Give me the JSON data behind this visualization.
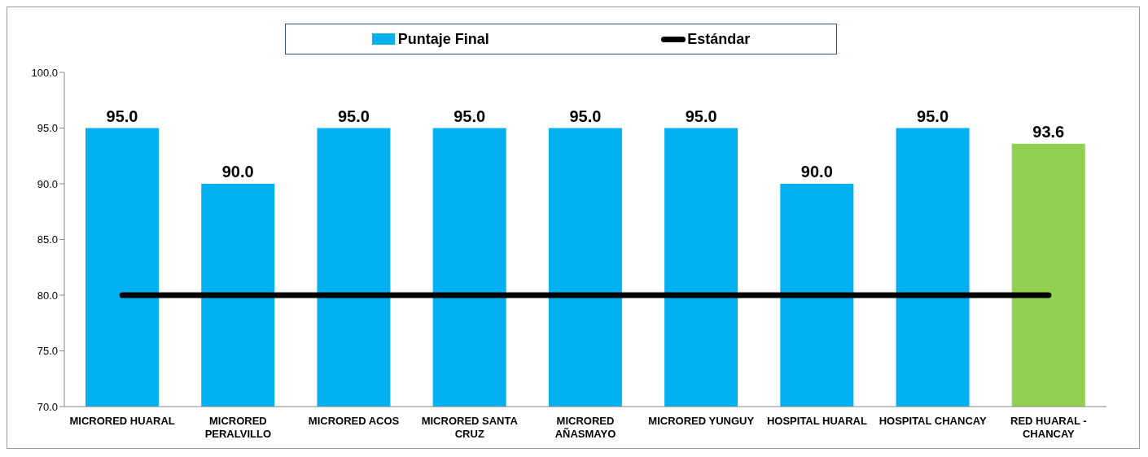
{
  "chart_data": {
    "type": "bar",
    "categories": [
      "MICRORED HUARAL",
      "MICRORED PERALVILLO",
      "MICRORED ACOS",
      "MICRORED SANTA CRUZ",
      "MICRORED AÑASMAYO",
      "MICRORED YUNGUY",
      "HOSPITAL HUARAL",
      "HOSPITAL CHANCAY",
      "RED HUARAL - CHANCAY"
    ],
    "series": [
      {
        "name": "Puntaje Final",
        "color": "#00b0f0",
        "colors": [
          "#00b0f0",
          "#00b0f0",
          "#00b0f0",
          "#00b0f0",
          "#00b0f0",
          "#00b0f0",
          "#00b0f0",
          "#00b0f0",
          "#92d050"
        ],
        "values": [
          95,
          90,
          95,
          95,
          95,
          95,
          90,
          95,
          93.6
        ],
        "value_labels": [
          "95.0",
          "90.0",
          "95.0",
          "95.0",
          "95.0",
          "95.0",
          "90.0",
          "95.0",
          "93.6"
        ]
      },
      {
        "name": "Estándar",
        "type": "line",
        "color": "#000000",
        "values": [
          80,
          80,
          80,
          80,
          80,
          80,
          80,
          80,
          80
        ]
      }
    ],
    "ylim": [
      70,
      100
    ],
    "yticks": [
      {
        "value": 70,
        "label": "70.0"
      },
      {
        "value": 75,
        "label": "75.0"
      },
      {
        "value": 80,
        "label": "80.0"
      },
      {
        "value": 85,
        "label": "85.0"
      },
      {
        "value": 90,
        "label": "90.0"
      },
      {
        "value": 95,
        "label": "95.0"
      },
      {
        "value": 100,
        "label": "100.0"
      }
    ],
    "grid": false,
    "legend": "top",
    "marker": "none",
    "line_style": "solid"
  }
}
